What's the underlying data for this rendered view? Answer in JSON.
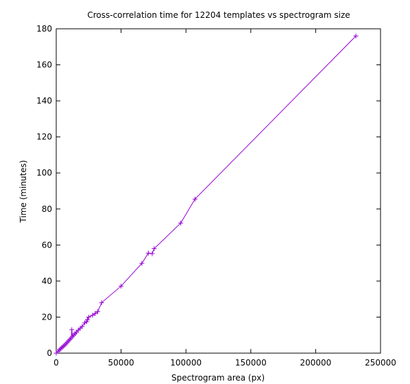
{
  "colors": {
    "background": "#ffffff",
    "axis": "#000000",
    "series": "#9400d3"
  },
  "chart_data": {
    "type": "line",
    "title": "Cross-correlation time for 12204 templates vs spectrogram size",
    "xlabel": "Spectrogram area (px)",
    "ylabel": "Time (minutes)",
    "xlim": [
      0,
      250000
    ],
    "ylim": [
      0,
      180
    ],
    "x_ticks": [
      0,
      50000,
      100000,
      150000,
      200000,
      250000
    ],
    "y_ticks": [
      0,
      20,
      40,
      60,
      80,
      100,
      120,
      140,
      160,
      180
    ],
    "grid": false,
    "legend": "none",
    "marker": "plus",
    "series": [
      {
        "points": [
          [
            0,
            0
          ],
          [
            1500,
            1
          ],
          [
            2500,
            1.8
          ],
          [
            3500,
            2.5
          ],
          [
            4500,
            3.2
          ],
          [
            5500,
            3.8
          ],
          [
            6500,
            4.5
          ],
          [
            7500,
            5.2
          ],
          [
            8500,
            6.0
          ],
          [
            9500,
            6.8
          ],
          [
            10500,
            7.6
          ],
          [
            11500,
            8.4
          ],
          [
            12000,
            13
          ],
          [
            12500,
            9.2
          ],
          [
            13500,
            10
          ],
          [
            14500,
            10.8
          ],
          [
            15500,
            11.6
          ],
          [
            17000,
            12.8
          ],
          [
            18500,
            13.8
          ],
          [
            20000,
            14.8
          ],
          [
            22000,
            16.8
          ],
          [
            23500,
            17.5
          ],
          [
            24000,
            18.5
          ],
          [
            25000,
            20
          ],
          [
            28000,
            21
          ],
          [
            30000,
            22
          ],
          [
            32000,
            23
          ],
          [
            35000,
            28
          ],
          [
            50000,
            37.2
          ],
          [
            66000,
            49.8
          ],
          [
            71000,
            55.5
          ],
          [
            74000,
            55.2
          ],
          [
            75500,
            58
          ],
          [
            96000,
            72.2
          ],
          [
            107000,
            85.5
          ],
          [
            231000,
            176
          ]
        ]
      }
    ]
  }
}
